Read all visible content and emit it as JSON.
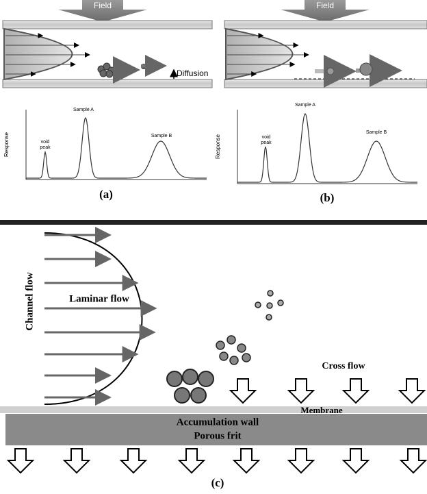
{
  "panel_a": {
    "field": "Field",
    "diffusion": "Diffusion",
    "y_label": "Response",
    "void_peak": [
      "void",
      "peak"
    ],
    "sample_a": "Sample A",
    "sample_b": "Sample B",
    "caption": "(a)"
  },
  "panel_b": {
    "field": "Field",
    "y_label": "Response",
    "void_peak": [
      "void",
      "peak"
    ],
    "sample_a": "Sample A",
    "sample_b": "Sample B",
    "caption": "(b)"
  },
  "panel_c": {
    "channel_flow": "Channel flow",
    "laminar_flow": "Laminar flow",
    "cross_flow": "Cross flow",
    "membrane": "Membrane",
    "accumulation_wall": "Accumulation wall",
    "porous_frit": "Porous frit",
    "caption": "(c)"
  }
}
